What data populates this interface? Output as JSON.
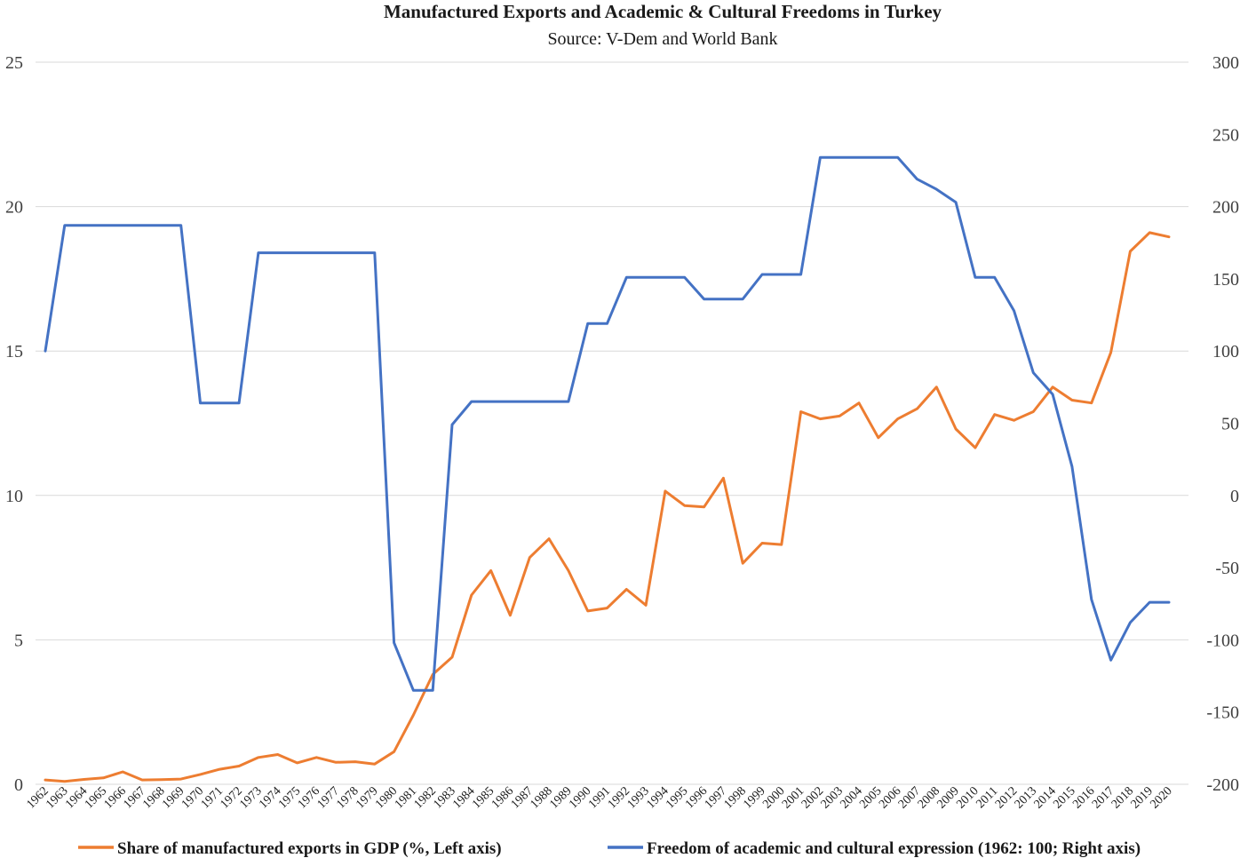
{
  "chart_data": {
    "type": "line",
    "title": "Manufactured Exports and Academic & Cultural Freedoms in Turkey",
    "subtitle": "Source: V-Dem and World Bank",
    "x": [
      "1962",
      "1963",
      "1964",
      "1965",
      "1966",
      "1967",
      "1968",
      "1969",
      "1970",
      "1971",
      "1972",
      "1973",
      "1974",
      "1975",
      "1976",
      "1977",
      "1978",
      "1979",
      "1980",
      "1981",
      "1982",
      "1983",
      "1984",
      "1985",
      "1986",
      "1987",
      "1988",
      "1989",
      "1990",
      "1991",
      "1992",
      "1993",
      "1994",
      "1995",
      "1996",
      "1997",
      "1998",
      "1999",
      "2000",
      "2001",
      "2002",
      "2003",
      "2004",
      "2005",
      "2006",
      "2007",
      "2008",
      "2009",
      "2010",
      "2011",
      "2012",
      "2013",
      "2014",
      "2015",
      "2016",
      "2017",
      "2018",
      "2019",
      "2020"
    ],
    "y_left": {
      "ylim": [
        0,
        25
      ],
      "ticks": [
        "0",
        "5",
        "10",
        "15",
        "20",
        "25"
      ]
    },
    "y_right": {
      "ylim": [
        -200,
        300
      ],
      "ticks": [
        "-200",
        "-150",
        "-100",
        "-50",
        "0",
        "50",
        "100",
        "150",
        "200",
        "250",
        "300"
      ]
    },
    "grid": true,
    "legend_position": "bottom",
    "series": [
      {
        "name": "Share of manufactured exports in GDP (%, Left axis)",
        "axis": "left",
        "color": "#ed7d31",
        "values": [
          0.15,
          0.1,
          0.17,
          0.22,
          0.43,
          0.15,
          0.16,
          0.18,
          0.34,
          0.52,
          0.63,
          0.93,
          1.03,
          0.74,
          0.93,
          0.76,
          0.78,
          0.7,
          1.13,
          2.4,
          3.8,
          4.4,
          6.55,
          7.4,
          5.85,
          7.85,
          8.5,
          7.4,
          6.0,
          6.1,
          6.75,
          6.2,
          10.15,
          9.65,
          9.6,
          10.6,
          7.65,
          8.35,
          8.3,
          12.9,
          12.65,
          12.75,
          13.2,
          12.0,
          12.65,
          13.0,
          13.75,
          12.3,
          11.65,
          12.8,
          12.6,
          12.9,
          13.75,
          13.3,
          13.2,
          14.95,
          18.45,
          19.1,
          18.95
        ]
      },
      {
        "name": "Freedom of academic and cultural expression (1962: 100; Right axis)",
        "axis": "right",
        "color": "#4472c4",
        "values": [
          100,
          187,
          187,
          187,
          187,
          187,
          187,
          187,
          64,
          64,
          64,
          168,
          168,
          168,
          168,
          168,
          168,
          168,
          -102,
          -135,
          -135,
          49,
          65,
          65,
          65,
          65,
          65,
          65,
          119,
          119,
          151,
          151,
          151,
          151,
          136,
          136,
          136,
          153,
          153,
          153,
          234,
          234,
          234,
          234,
          234,
          219,
          212,
          203,
          151,
          151,
          128,
          85,
          70,
          20,
          -72,
          -114,
          -88,
          -74,
          -74
        ]
      }
    ]
  }
}
